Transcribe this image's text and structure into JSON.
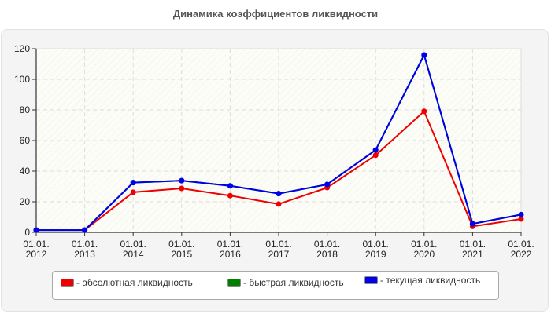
{
  "title": "Динамика коэффициентов ликвидности",
  "legend": [
    {
      "label": "- абсолютная ликвидность",
      "color": "#ee0000"
    },
    {
      "label": "- быстрая ликвидность",
      "color": "#007f00"
    },
    {
      "label": "- текущая ликвидность",
      "color": "#0000ee"
    }
  ],
  "chart_data": {
    "type": "line",
    "title": "Динамика коэффициентов ликвидности",
    "xlabel": "",
    "ylabel": "",
    "categories": [
      "01.01.2012",
      "01.01.2013",
      "01.01.2014",
      "01.01.2015",
      "01.01.2016",
      "01.01.2017",
      "01.01.2018",
      "01.01.2019",
      "01.01.2020",
      "01.01.2021",
      "01.01.2022"
    ],
    "x_tick_labels": [
      [
        "01.01.",
        "2012"
      ],
      [
        "01.01.",
        "2013"
      ],
      [
        "01.01.",
        "2014"
      ],
      [
        "01.01.",
        "2015"
      ],
      [
        "01.01.",
        "2016"
      ],
      [
        "01.01.",
        "2017"
      ],
      [
        "01.01.",
        "2018"
      ],
      [
        "01.01.",
        "2019"
      ],
      [
        "01.01.",
        "2020"
      ],
      [
        "01.01.",
        "2021"
      ],
      [
        "01.01.",
        "2022"
      ]
    ],
    "y_ticks": [
      0,
      20,
      40,
      60,
      80,
      100,
      120
    ],
    "ylim": [
      0,
      120
    ],
    "grid": true,
    "legend_position": "bottom",
    "series": [
      {
        "name": "абсолютная ликвидность",
        "color": "#ee0000",
        "values": [
          1.5,
          1.5,
          26.2,
          28.7,
          24.0,
          18.5,
          29.2,
          50.4,
          79.1,
          3.9,
          8.7
        ]
      },
      {
        "name": "быстрая ликвидность",
        "color": "#007f00",
        "values": [
          1.5,
          1.5,
          32.5,
          33.8,
          30.4,
          25.3,
          31.3,
          53.8,
          115.9,
          5.6,
          11.6
        ]
      },
      {
        "name": "текущая ликвидность",
        "color": "#0000ee",
        "values": [
          1.5,
          1.5,
          32.5,
          33.8,
          30.4,
          25.3,
          31.3,
          53.8,
          115.9,
          5.6,
          11.6
        ]
      }
    ]
  }
}
